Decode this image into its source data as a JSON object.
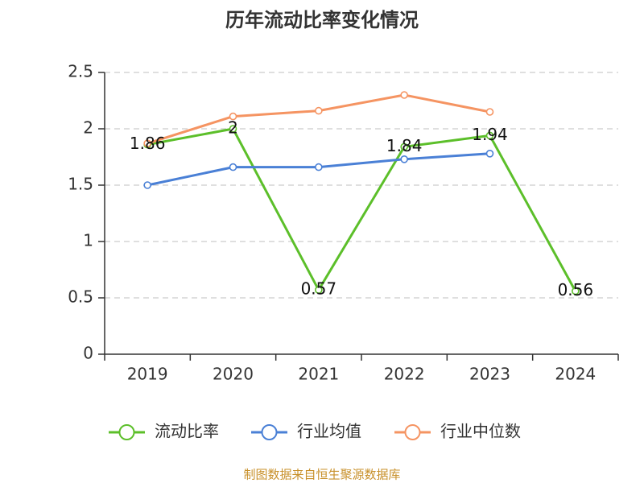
{
  "chart_data": {
    "type": "line",
    "title": "历年流动比率变化情况",
    "categories": [
      "2019",
      "2020",
      "2021",
      "2022",
      "2023",
      "2024"
    ],
    "ylim": [
      0,
      2.5
    ],
    "yticks": [
      0,
      0.5,
      1,
      1.5,
      2,
      2.5
    ],
    "ytick_labels": [
      "0",
      "0.5",
      "1",
      "1.5",
      "2",
      "2.5"
    ],
    "grid": true,
    "legend": "bottom",
    "series": [
      {
        "name": "流动比率",
        "color": "#5cbf2a",
        "values": [
          1.86,
          2,
          0.57,
          1.84,
          1.94,
          0.56
        ],
        "labels": [
          "1.86",
          "2",
          "0.57",
          "1.84",
          "1.94",
          "0.56"
        ]
      },
      {
        "name": "行业均值",
        "color": "#4a80d6",
        "values": [
          1.5,
          1.66,
          1.66,
          1.73,
          1.78,
          null
        ]
      },
      {
        "name": "行业中位数",
        "color": "#f59462",
        "values": [
          1.87,
          2.11,
          2.16,
          2.3,
          2.15,
          null
        ]
      }
    ]
  },
  "source": {
    "text": "制图数据来自恒生聚源数据库",
    "color": "#c8902a"
  }
}
